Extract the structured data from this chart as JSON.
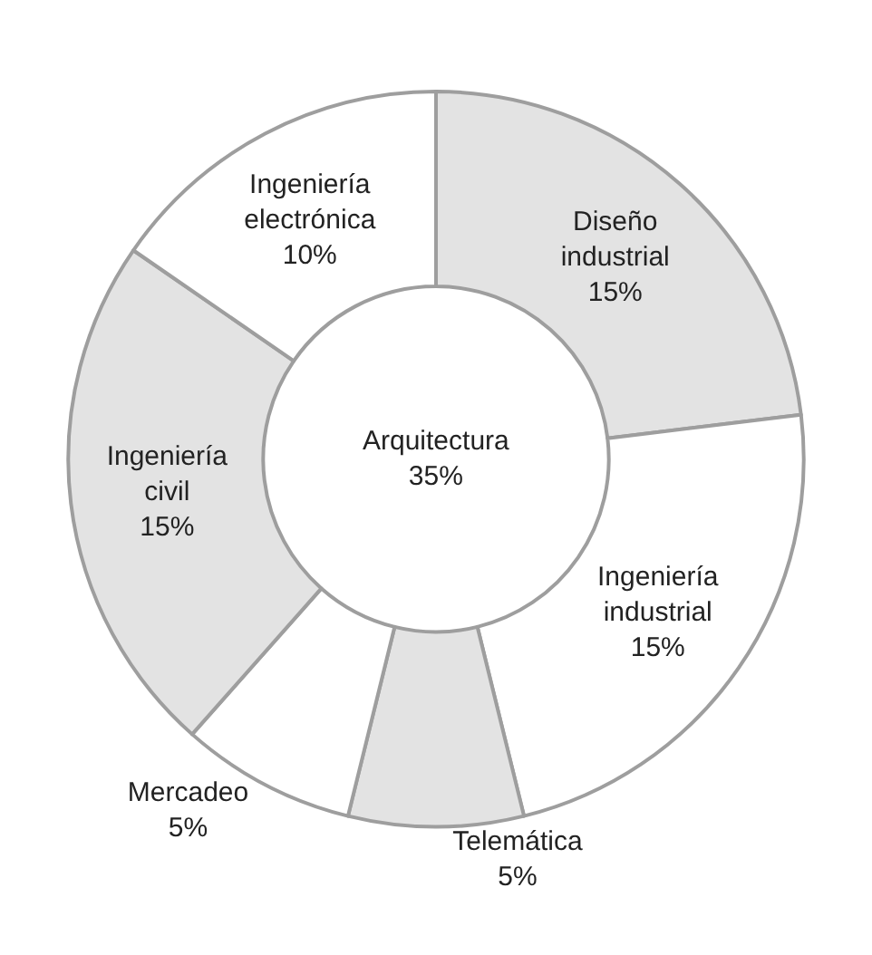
{
  "chart_data": {
    "type": "donut",
    "categories": [
      "Diseño industrial",
      "Ingeniería industrial",
      "Telemática",
      "Mercadeo",
      "Ingeniería civil",
      "Ingeniería electrónica"
    ],
    "values": [
      15,
      15,
      5,
      5,
      15,
      10
    ],
    "value_labels": [
      "15%",
      "15%",
      "5%",
      "5%",
      "15%",
      "10%"
    ],
    "colors": [
      "#e3e3e3",
      "#ffffff",
      "#e3e3e3",
      "#ffffff",
      "#e3e3e3",
      "#ffffff"
    ],
    "annotations": [
      "Arquitectura\n35%"
    ],
    "legend": false
  }
}
